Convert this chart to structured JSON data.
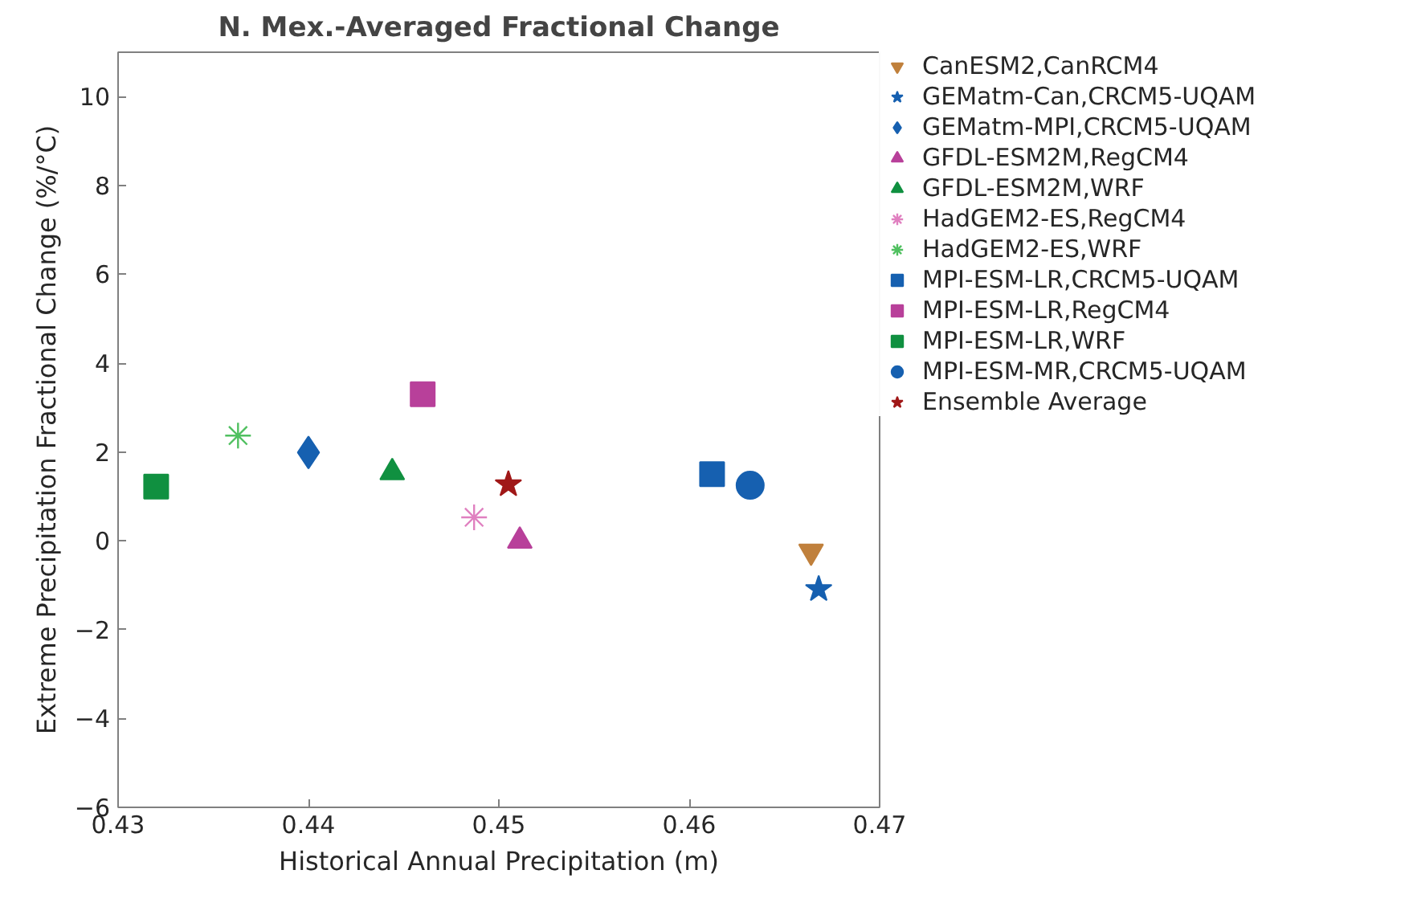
{
  "chart_data": {
    "type": "scatter",
    "title": "N. Mex.-Averaged Fractional Change",
    "xlabel": "Historical Annual Precipitation (m)",
    "ylabel": "Extreme Precipitation Fractional Change (%/°C)",
    "xlim": [
      0.43,
      0.47
    ],
    "xticks": [
      0.43,
      0.44,
      0.45,
      0.46,
      0.47
    ],
    "ylim": [
      -6,
      11
    ],
    "yticks": [
      -6,
      -4,
      -2,
      0,
      2,
      4,
      6,
      8,
      10
    ],
    "grid": false,
    "legend": "right",
    "series": [
      {
        "name": "CanESM2,CanRCM4",
        "color": "#c0803c",
        "marker": "triangle_down",
        "x": [
          0.4664
        ],
        "values": [
          -0.24
        ]
      },
      {
        "name": "GEMatm-Can,CRCM5-UQAM",
        "color": "#1660b0",
        "marker": "star",
        "x": [
          0.4668
        ],
        "values": [
          -1.09
        ]
      },
      {
        "name": "GEMatm-MPI,CRCM5-UQAM",
        "color": "#1660b0",
        "marker": "diamond",
        "x": [
          0.44
        ],
        "values": [
          1.99
        ]
      },
      {
        "name": "GFDL-ESM2M,RegCM4",
        "color": "#b8409a",
        "marker": "triangle",
        "x": [
          0.4511
        ],
        "values": [
          0.0
        ]
      },
      {
        "name": "GFDL-ESM2M,WRF",
        "color": "#109040",
        "marker": "triangle",
        "x": [
          0.4444
        ],
        "values": [
          1.54
        ]
      },
      {
        "name": "HadGEM2-ES,RegCM4",
        "color": "#e080c0",
        "marker": "cross",
        "x": [
          0.4487
        ],
        "values": [
          0.53
        ]
      },
      {
        "name": "HadGEM2-ES,WRF",
        "color": "#50c060",
        "marker": "cross",
        "x": [
          0.4363
        ],
        "values": [
          2.37
        ]
      },
      {
        "name": "MPI-ESM-LR,CRCM5-UQAM",
        "color": "#1660b0",
        "marker": "square",
        "x": [
          0.4612
        ],
        "values": [
          1.5
        ]
      },
      {
        "name": "MPI-ESM-LR,RegCM4",
        "color": "#b8409a",
        "marker": "square",
        "x": [
          0.446
        ],
        "values": [
          3.3
        ]
      },
      {
        "name": "MPI-ESM-LR,WRF",
        "color": "#109040",
        "marker": "square",
        "x": [
          0.432
        ],
        "values": [
          1.22
        ]
      },
      {
        "name": "MPI-ESM-MR,CRCM5-UQAM",
        "color": "#1660b0",
        "marker": "circle",
        "x": [
          0.4632
        ],
        "values": [
          1.25
        ]
      },
      {
        "name": "Ensemble Average",
        "color": "#a01818",
        "marker": "star",
        "x": [
          0.4505
        ],
        "values": [
          1.27
        ]
      }
    ]
  }
}
